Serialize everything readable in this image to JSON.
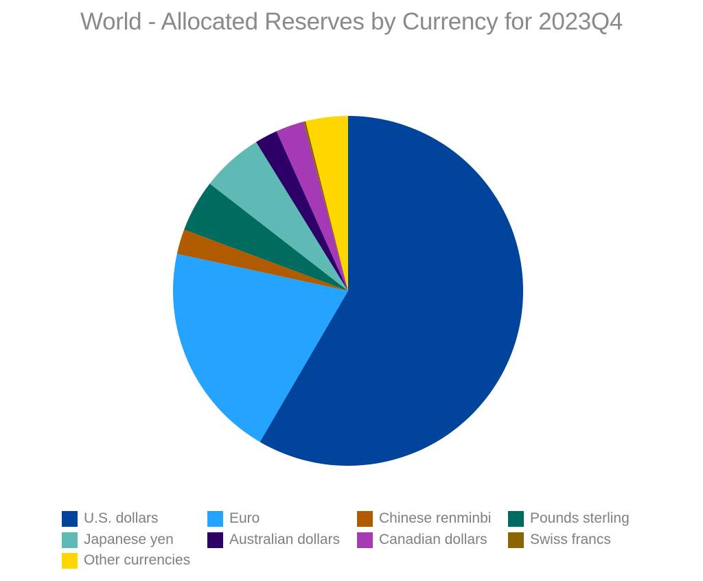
{
  "chart_data": {
    "type": "pie",
    "title": "World - Allocated Reserves by Currency for 2023Q4",
    "legend_position": "bottom",
    "unit": "%",
    "slices": [
      {
        "name": "U.S. dollars",
        "value": 58.4,
        "color": "#00449b"
      },
      {
        "name": "Euro",
        "value": 20.0,
        "color": "#24a4ff"
      },
      {
        "name": "Chinese renminbi",
        "value": 2.3,
        "color": "#b05b00"
      },
      {
        "name": "Pounds sterling",
        "value": 4.8,
        "color": "#006b5f"
      },
      {
        "name": "Japanese yen",
        "value": 5.7,
        "color": "#5fbab5"
      },
      {
        "name": "Australian dollars",
        "value": 2.1,
        "color": "#2c0066"
      },
      {
        "name": "Canadian dollars",
        "value": 2.6,
        "color": "#a63ab5"
      },
      {
        "name": "Swiss francs",
        "value": 0.2,
        "color": "#8a6500"
      },
      {
        "name": "Other currencies",
        "value": 3.9,
        "color": "#ffd700"
      }
    ]
  }
}
